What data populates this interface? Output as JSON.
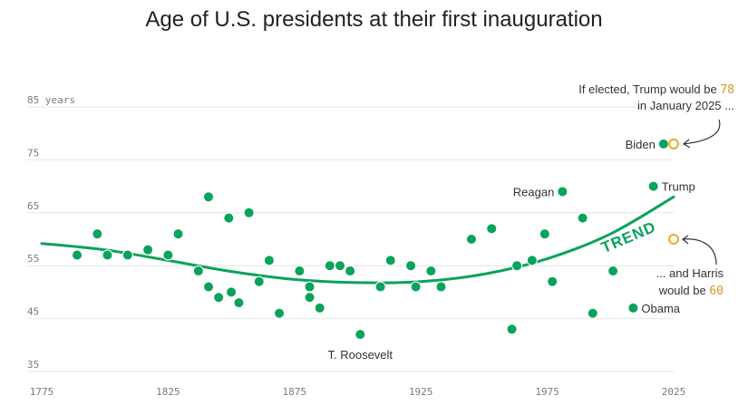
{
  "chart_data": {
    "type": "scatter",
    "title": "Age of U.S. presidents at their first inauguration",
    "xlabel": "",
    "ylabel": "",
    "xlim": [
      1775,
      2025
    ],
    "ylim": [
      35,
      87
    ],
    "x_ticks": [
      "1775",
      "1825",
      "1875",
      "1925",
      "1975",
      "2025"
    ],
    "y_ticks": [
      {
        "value": 85,
        "label": "85 years"
      },
      {
        "value": 75,
        "label": "75"
      },
      {
        "value": 65,
        "label": "65"
      },
      {
        "value": 55,
        "label": "55"
      },
      {
        "value": 45,
        "label": "45"
      },
      {
        "value": 35,
        "label": "35"
      }
    ],
    "grid": true,
    "colors": {
      "points": "#0aa35b",
      "trend": "#0aa35b",
      "hypothetical": "#f5a623",
      "grid": "#e6e6e6"
    },
    "points": [
      {
        "x": 1789,
        "y": 57
      },
      {
        "x": 1797,
        "y": 61
      },
      {
        "x": 1801,
        "y": 57
      },
      {
        "x": 1809,
        "y": 57
      },
      {
        "x": 1817,
        "y": 58
      },
      {
        "x": 1825,
        "y": 57
      },
      {
        "x": 1829,
        "y": 61
      },
      {
        "x": 1837,
        "y": 54
      },
      {
        "x": 1841,
        "y": 68
      },
      {
        "x": 1841,
        "y": 51
      },
      {
        "x": 1845,
        "y": 49
      },
      {
        "x": 1849,
        "y": 64
      },
      {
        "x": 1850,
        "y": 50
      },
      {
        "x": 1853,
        "y": 48
      },
      {
        "x": 1857,
        "y": 65
      },
      {
        "x": 1861,
        "y": 52
      },
      {
        "x": 1865,
        "y": 56
      },
      {
        "x": 1869,
        "y": 46
      },
      {
        "x": 1877,
        "y": 54
      },
      {
        "x": 1881,
        "y": 49
      },
      {
        "x": 1881,
        "y": 51
      },
      {
        "x": 1885,
        "y": 47
      },
      {
        "x": 1889,
        "y": 55
      },
      {
        "x": 1893,
        "y": 55
      },
      {
        "x": 1897,
        "y": 54
      },
      {
        "x": 1901,
        "y": 42
      },
      {
        "x": 1909,
        "y": 51
      },
      {
        "x": 1913,
        "y": 56
      },
      {
        "x": 1921,
        "y": 55
      },
      {
        "x": 1923,
        "y": 51
      },
      {
        "x": 1929,
        "y": 54
      },
      {
        "x": 1933,
        "y": 51
      },
      {
        "x": 1945,
        "y": 60
      },
      {
        "x": 1953,
        "y": 62
      },
      {
        "x": 1961,
        "y": 43
      },
      {
        "x": 1963,
        "y": 55
      },
      {
        "x": 1969,
        "y": 56
      },
      {
        "x": 1974,
        "y": 61
      },
      {
        "x": 1977,
        "y": 52
      },
      {
        "x": 1981,
        "y": 69
      },
      {
        "x": 1989,
        "y": 64
      },
      {
        "x": 1993,
        "y": 46
      },
      {
        "x": 2001,
        "y": 54
      },
      {
        "x": 2009,
        "y": 47
      },
      {
        "x": 2017,
        "y": 70
      },
      {
        "x": 2021,
        "y": 78
      }
    ],
    "hypothetical_points": [
      {
        "x": 2025,
        "y": 78
      },
      {
        "x": 2025,
        "y": 60
      }
    ],
    "trend": {
      "label": "TREND",
      "x": [
        1775,
        1800,
        1825,
        1850,
        1875,
        1900,
        1925,
        1950,
        1975,
        2000,
        2025
      ],
      "y": [
        59.2,
        58.0,
        56.0,
        53.9,
        52.4,
        51.8,
        52.0,
        53.4,
        56.3,
        61.0,
        68.0
      ]
    },
    "point_labels": [
      {
        "text": "Biden",
        "x": 2021,
        "y": 78,
        "side": "left"
      },
      {
        "text": "Trump",
        "x": 2017,
        "y": 70,
        "side": "right"
      },
      {
        "text": "Reagan",
        "x": 1981,
        "y": 69,
        "side": "left"
      },
      {
        "text": "Obama",
        "x": 2009,
        "y": 47,
        "side": "right"
      },
      {
        "text": "T. Roosevelt",
        "x": 1901,
        "y": 42,
        "side": "below"
      }
    ],
    "annotations": [
      {
        "lines": [
          [
            "If elected, Trump would be ",
            "78"
          ],
          [
            "in January 2025 ...",
            ""
          ]
        ]
      },
      {
        "lines": [
          [
            "... and Harris",
            ""
          ],
          [
            "would be ",
            "60"
          ]
        ]
      }
    ]
  }
}
